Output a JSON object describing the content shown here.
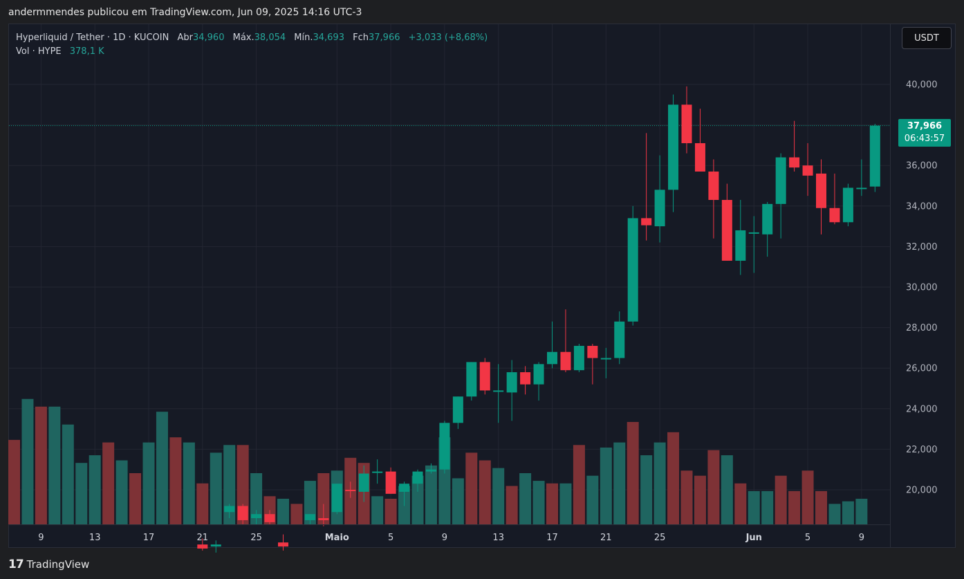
{
  "header": {
    "caption": "andermmendes publicou em TradingView.com, Jun 09, 2025 14:16 UTC-3"
  },
  "legend": {
    "symbol": "Hyperliquid / Tether · 1D · KUCOIN",
    "open_label": "Abr",
    "open": "34,960",
    "high_label": "Máx.",
    "high": "38,054",
    "low_label": "Mín.",
    "low": "34,693",
    "close_label": "Fch",
    "close": "37,966",
    "change": "+3,033 (+8,68%)",
    "vol_label": "Vol · HYPE",
    "vol_value": "378,1 K"
  },
  "currency_button": "USDT",
  "last_price": {
    "price": "37,966",
    "countdown": "06:43:57"
  },
  "footer": {
    "brand": "TradingView"
  },
  "colors": {
    "up": "#089981",
    "down": "#f23645",
    "vol_up": "#1f6560",
    "vol_down": "#7e3236"
  },
  "chart_data": {
    "type": "candlestick",
    "y_ticks": [
      "40,000",
      "38,000",
      "36,000",
      "34,000",
      "32,000",
      "30,000",
      "28,000",
      "26,000",
      "24,000",
      "22,000",
      "20,000"
    ],
    "y_tick_values": [
      40,
      38,
      36,
      34,
      32,
      30,
      28,
      26,
      24,
      22,
      20
    ],
    "x_ticks": [
      {
        "label": "9",
        "i": 2
      },
      {
        "label": "13",
        "i": 6
      },
      {
        "label": "17",
        "i": 10
      },
      {
        "label": "21",
        "i": 14
      },
      {
        "label": "25",
        "i": 18
      },
      {
        "label": "Maio",
        "i": 24
      },
      {
        "label": "5",
        "i": 28
      },
      {
        "label": "9",
        "i": 32
      },
      {
        "label": "13",
        "i": 36
      },
      {
        "label": "17",
        "i": 40
      },
      {
        "label": "21",
        "i": 44
      },
      {
        "label": "25",
        "i": 48
      },
      {
        "label": "Jun",
        "i": 55
      },
      {
        "label": "5",
        "i": 59
      },
      {
        "label": "9",
        "i": 63
      }
    ],
    "candles": [
      {
        "i": 14,
        "o": 17.3,
        "h": 17.6,
        "l": 17.0,
        "c": 17.1
      },
      {
        "i": 15,
        "o": 17.2,
        "h": 17.5,
        "l": 16.9,
        "c": 17.3
      },
      {
        "i": 16,
        "o": 18.9,
        "h": 19.3,
        "l": 18.6,
        "c": 19.2
      },
      {
        "i": 17,
        "o": 19.2,
        "h": 19.3,
        "l": 18.3,
        "c": 18.5
      },
      {
        "i": 18,
        "o": 18.6,
        "h": 19.0,
        "l": 18.3,
        "c": 18.8
      },
      {
        "i": 19,
        "o": 18.8,
        "h": 19.0,
        "l": 18.3,
        "c": 18.4
      },
      {
        "i": 20,
        "o": 17.4,
        "h": 17.8,
        "l": 17.0,
        "c": 17.2
      },
      {
        "i": 22,
        "o": 18.5,
        "h": 18.8,
        "l": 18.3,
        "c": 18.8
      },
      {
        "i": 23,
        "o": 18.6,
        "h": 19.3,
        "l": 18.2,
        "c": 18.5
      },
      {
        "i": 24,
        "o": 18.9,
        "h": 20.3,
        "l": 18.8,
        "c": 20.3
      },
      {
        "i": 25,
        "o": 20.0,
        "h": 20.4,
        "l": 19.6,
        "c": 19.95
      },
      {
        "i": 26,
        "o": 19.9,
        "h": 21.2,
        "l": 19.4,
        "c": 20.8
      },
      {
        "i": 27,
        "o": 20.85,
        "h": 21.5,
        "l": 20.3,
        "c": 20.9
      },
      {
        "i": 28,
        "o": 20.9,
        "h": 21.1,
        "l": 19.8,
        "c": 19.8
      },
      {
        "i": 29,
        "o": 19.9,
        "h": 20.4,
        "l": 19.2,
        "c": 20.3
      },
      {
        "i": 30,
        "o": 20.3,
        "h": 21.0,
        "l": 19.9,
        "c": 20.9
      },
      {
        "i": 31,
        "o": 20.9,
        "h": 21.3,
        "l": 20.8,
        "c": 21.0
      },
      {
        "i": 32,
        "o": 21.0,
        "h": 23.4,
        "l": 20.8,
        "c": 23.3
      },
      {
        "i": 33,
        "o": 23.3,
        "h": 24.6,
        "l": 23.0,
        "c": 24.6
      },
      {
        "i": 34,
        "o": 24.6,
        "h": 26.3,
        "l": 24.4,
        "c": 26.3
      },
      {
        "i": 35,
        "o": 26.3,
        "h": 26.5,
        "l": 24.7,
        "c": 24.9
      },
      {
        "i": 36,
        "o": 24.85,
        "h": 26.2,
        "l": 23.3,
        "c": 24.9
      },
      {
        "i": 37,
        "o": 24.8,
        "h": 26.4,
        "l": 23.4,
        "c": 25.8
      },
      {
        "i": 38,
        "o": 25.8,
        "h": 26.1,
        "l": 24.7,
        "c": 25.2
      },
      {
        "i": 39,
        "o": 25.2,
        "h": 26.3,
        "l": 24.4,
        "c": 26.2
      },
      {
        "i": 40,
        "o": 26.2,
        "h": 28.3,
        "l": 26.0,
        "c": 26.8
      },
      {
        "i": 41,
        "o": 26.8,
        "h": 28.9,
        "l": 25.8,
        "c": 25.9
      },
      {
        "i": 42,
        "o": 25.9,
        "h": 27.2,
        "l": 25.8,
        "c": 27.1
      },
      {
        "i": 43,
        "o": 27.1,
        "h": 27.2,
        "l": 25.2,
        "c": 26.5
      },
      {
        "i": 44,
        "o": 26.5,
        "h": 27.0,
        "l": 25.5,
        "c": 26.5
      },
      {
        "i": 45,
        "o": 26.5,
        "h": 28.8,
        "l": 26.2,
        "c": 28.3
      },
      {
        "i": 46,
        "o": 28.3,
        "h": 34.0,
        "l": 28.1,
        "c": 33.4
      },
      {
        "i": 47,
        "o": 33.4,
        "h": 37.6,
        "l": 32.3,
        "c": 33.05
      },
      {
        "i": 48,
        "o": 33.0,
        "h": 36.5,
        "l": 32.2,
        "c": 34.8
      },
      {
        "i": 49,
        "o": 34.8,
        "h": 39.5,
        "l": 33.7,
        "c": 39.0
      },
      {
        "i": 50,
        "o": 39.0,
        "h": 39.9,
        "l": 36.6,
        "c": 37.1
      },
      {
        "i": 51,
        "o": 37.1,
        "h": 38.8,
        "l": 35.7,
        "c": 35.7
      },
      {
        "i": 52,
        "o": 35.7,
        "h": 36.3,
        "l": 32.4,
        "c": 34.3
      },
      {
        "i": 53,
        "o": 34.3,
        "h": 35.1,
        "l": 31.3,
        "c": 31.3
      },
      {
        "i": 54,
        "o": 31.3,
        "h": 34.3,
        "l": 30.6,
        "c": 32.8
      },
      {
        "i": 55,
        "o": 32.7,
        "h": 33.5,
        "l": 30.7,
        "c": 32.7
      },
      {
        "i": 56,
        "o": 32.6,
        "h": 34.2,
        "l": 31.5,
        "c": 34.1
      },
      {
        "i": 57,
        "o": 34.1,
        "h": 36.6,
        "l": 32.4,
        "c": 36.4
      },
      {
        "i": 58,
        "o": 36.4,
        "h": 38.2,
        "l": 35.7,
        "c": 35.9
      },
      {
        "i": 59,
        "o": 36.0,
        "h": 37.1,
        "l": 34.5,
        "c": 35.5
      },
      {
        "i": 60,
        "o": 35.6,
        "h": 36.3,
        "l": 32.6,
        "c": 33.9
      },
      {
        "i": 61,
        "o": 33.9,
        "h": 35.6,
        "l": 33.1,
        "c": 33.2
      },
      {
        "i": 62,
        "o": 33.2,
        "h": 35.1,
        "l": 33.0,
        "c": 34.9
      },
      {
        "i": 63,
        "o": 34.9,
        "h": 36.3,
        "l": 34.5,
        "c": 34.9
      },
      {
        "i": 64,
        "o": 34.96,
        "h": 38.054,
        "l": 34.693,
        "c": 37.966
      }
    ],
    "volumes": [
      {
        "i": 0,
        "v": 33,
        "up": false
      },
      {
        "i": 1,
        "v": 49,
        "up": true
      },
      {
        "i": 2,
        "v": 46,
        "up": false
      },
      {
        "i": 3,
        "v": 46,
        "up": true
      },
      {
        "i": 4,
        "v": 39,
        "up": true
      },
      {
        "i": 5,
        "v": 24,
        "up": true
      },
      {
        "i": 6,
        "v": 27,
        "up": true
      },
      {
        "i": 7,
        "v": 32,
        "up": false
      },
      {
        "i": 8,
        "v": 25,
        "up": true
      },
      {
        "i": 9,
        "v": 20,
        "up": false
      },
      {
        "i": 10,
        "v": 32,
        "up": true
      },
      {
        "i": 11,
        "v": 44,
        "up": true
      },
      {
        "i": 12,
        "v": 34,
        "up": false
      },
      {
        "i": 13,
        "v": 32,
        "up": true
      },
      {
        "i": 14,
        "v": 16,
        "up": false
      },
      {
        "i": 15,
        "v": 28,
        "up": true
      },
      {
        "i": 16,
        "v": 31,
        "up": true
      },
      {
        "i": 17,
        "v": 31,
        "up": false
      },
      {
        "i": 18,
        "v": 20,
        "up": true
      },
      {
        "i": 19,
        "v": 11,
        "up": false
      },
      {
        "i": 20,
        "v": 10,
        "up": true
      },
      {
        "i": 21,
        "v": 8,
        "up": false
      },
      {
        "i": 22,
        "v": 17,
        "up": true
      },
      {
        "i": 23,
        "v": 20,
        "up": false
      },
      {
        "i": 24,
        "v": 21,
        "up": true
      },
      {
        "i": 25,
        "v": 26,
        "up": false
      },
      {
        "i": 26,
        "v": 24,
        "up": false
      },
      {
        "i": 27,
        "v": 11,
        "up": true
      },
      {
        "i": 28,
        "v": 10,
        "up": false
      },
      {
        "i": 29,
        "v": 15,
        "up": true
      },
      {
        "i": 30,
        "v": 19,
        "up": true
      },
      {
        "i": 31,
        "v": 23,
        "up": true
      },
      {
        "i": 32,
        "v": 34,
        "up": true
      },
      {
        "i": 33,
        "v": 18,
        "up": true
      },
      {
        "i": 34,
        "v": 28,
        "up": false
      },
      {
        "i": 35,
        "v": 25,
        "up": false
      },
      {
        "i": 36,
        "v": 22,
        "up": true
      },
      {
        "i": 37,
        "v": 15,
        "up": false
      },
      {
        "i": 38,
        "v": 20,
        "up": true
      },
      {
        "i": 39,
        "v": 17,
        "up": true
      },
      {
        "i": 40,
        "v": 16,
        "up": false
      },
      {
        "i": 41,
        "v": 16,
        "up": true
      },
      {
        "i": 42,
        "v": 31,
        "up": false
      },
      {
        "i": 43,
        "v": 19,
        "up": true
      },
      {
        "i": 44,
        "v": 30,
        "up": true
      },
      {
        "i": 45,
        "v": 32,
        "up": true
      },
      {
        "i": 46,
        "v": 40,
        "up": false
      },
      {
        "i": 47,
        "v": 27,
        "up": true
      },
      {
        "i": 48,
        "v": 32,
        "up": true
      },
      {
        "i": 49,
        "v": 36,
        "up": false
      },
      {
        "i": 50,
        "v": 21,
        "up": false
      },
      {
        "i": 51,
        "v": 19,
        "up": false
      },
      {
        "i": 52,
        "v": 29,
        "up": false
      },
      {
        "i": 53,
        "v": 27,
        "up": true
      },
      {
        "i": 54,
        "v": 16,
        "up": false
      },
      {
        "i": 55,
        "v": 13,
        "up": true
      },
      {
        "i": 56,
        "v": 13,
        "up": true
      },
      {
        "i": 57,
        "v": 19,
        "up": false
      },
      {
        "i": 58,
        "v": 13,
        "up": false
      },
      {
        "i": 59,
        "v": 21,
        "up": false
      },
      {
        "i": 60,
        "v": 13,
        "up": false
      },
      {
        "i": 61,
        "v": 8,
        "up": true
      },
      {
        "i": 62,
        "v": 9,
        "up": true
      },
      {
        "i": 63,
        "v": 10,
        "up": true
      }
    ],
    "last_price_line": 37.966
  }
}
